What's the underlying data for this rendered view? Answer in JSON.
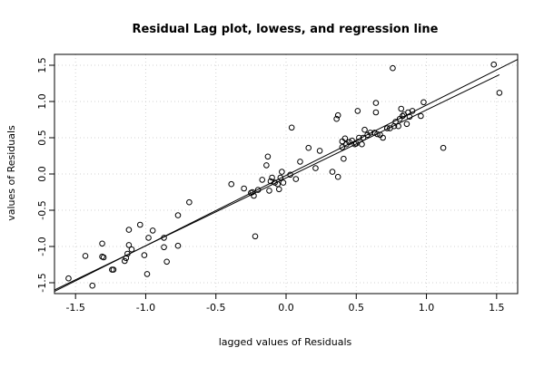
{
  "chart_data": {
    "type": "scatter",
    "title": "Residual Lag plot, lowess, and regression line",
    "xlabel": "lagged values of Residuals",
    "ylabel": "values of Residuals",
    "xlim": [
      -1.65,
      1.65
    ],
    "ylim": [
      -1.65,
      1.65
    ],
    "x_ticks": [
      -1.5,
      -1.0,
      -0.5,
      0.0,
      0.5,
      1.0,
      1.5
    ],
    "x_tick_labels": [
      "-1.5",
      "-1.0",
      "-0.5",
      "0.0",
      "0.5",
      "1.0",
      "1.5"
    ],
    "y_ticks": [
      -1.5,
      -1.0,
      -0.5,
      0.0,
      0.5,
      1.0,
      1.5
    ],
    "y_tick_labels": [
      "-1.5",
      "-1.0",
      "-0.5",
      "0.0",
      "0.5",
      "1.0",
      "1.5"
    ],
    "grid": true,
    "point_style": "open-circle",
    "series": [
      {
        "values": [
          [
            -1.55,
            -1.44
          ],
          [
            -1.43,
            -1.13
          ],
          [
            -1.38,
            -1.54
          ],
          [
            -1.31,
            -0.96
          ],
          [
            -1.31,
            -1.14
          ],
          [
            -1.3,
            -1.15
          ],
          [
            -1.24,
            -1.32
          ],
          [
            -1.23,
            -1.32
          ],
          [
            -1.15,
            -1.2
          ],
          [
            -1.14,
            -1.16
          ],
          [
            -1.13,
            -1.1
          ],
          [
            -1.12,
            -0.98
          ],
          [
            -1.12,
            -0.77
          ],
          [
            -1.1,
            -1.04
          ],
          [
            -1.04,
            -0.7
          ],
          [
            -1.01,
            -1.12
          ],
          [
            -0.99,
            -1.38
          ],
          [
            -0.98,
            -0.88
          ],
          [
            -0.95,
            -0.78
          ],
          [
            -0.87,
            -0.88
          ],
          [
            -0.87,
            -1.01
          ],
          [
            -0.85,
            -1.21
          ],
          [
            -0.77,
            -0.99
          ],
          [
            -0.77,
            -0.57
          ],
          [
            -0.69,
            -0.39
          ],
          [
            -0.39,
            -0.14
          ],
          [
            -0.3,
            -0.2
          ],
          [
            -0.25,
            -0.26
          ],
          [
            -0.24,
            -0.25
          ],
          [
            -0.23,
            -0.3
          ],
          [
            -0.22,
            -0.86
          ],
          [
            -0.2,
            -0.22
          ],
          [
            -0.17,
            -0.08
          ],
          [
            -0.14,
            0.12
          ],
          [
            -0.13,
            0.24
          ],
          [
            -0.12,
            -0.23
          ],
          [
            -0.11,
            -0.1
          ],
          [
            -0.1,
            -0.05
          ],
          [
            -0.08,
            -0.12
          ],
          [
            -0.06,
            -0.14
          ],
          [
            -0.05,
            -0.21
          ],
          [
            -0.04,
            -0.05
          ],
          [
            -0.03,
            0.03
          ],
          [
            -0.02,
            -0.12
          ],
          [
            0.03,
            -0.01
          ],
          [
            0.04,
            0.64
          ],
          [
            0.07,
            -0.07
          ],
          [
            0.1,
            0.17
          ],
          [
            0.16,
            0.36
          ],
          [
            0.21,
            0.08
          ],
          [
            0.24,
            0.32
          ],
          [
            0.33,
            0.03
          ],
          [
            0.36,
            0.76
          ],
          [
            0.37,
            0.81
          ],
          [
            0.37,
            -0.04
          ],
          [
            0.4,
            0.37
          ],
          [
            0.4,
            0.45
          ],
          [
            0.41,
            0.21
          ],
          [
            0.42,
            0.49
          ],
          [
            0.43,
            0.41
          ],
          [
            0.45,
            0.44
          ],
          [
            0.47,
            0.46
          ],
          [
            0.49,
            0.41
          ],
          [
            0.5,
            0.42
          ],
          [
            0.51,
            0.87
          ],
          [
            0.52,
            0.5
          ],
          [
            0.54,
            0.41
          ],
          [
            0.55,
            0.5
          ],
          [
            0.56,
            0.61
          ],
          [
            0.58,
            0.54
          ],
          [
            0.6,
            0.57
          ],
          [
            0.63,
            0.57
          ],
          [
            0.64,
            0.85
          ],
          [
            0.64,
            0.98
          ],
          [
            0.65,
            0.55
          ],
          [
            0.67,
            0.54
          ],
          [
            0.69,
            0.5
          ],
          [
            0.72,
            0.63
          ],
          [
            0.74,
            0.63
          ],
          [
            0.76,
            1.46
          ],
          [
            0.77,
            0.66
          ],
          [
            0.78,
            0.72
          ],
          [
            0.8,
            0.66
          ],
          [
            0.81,
            0.76
          ],
          [
            0.82,
            0.9
          ],
          [
            0.83,
            0.8
          ],
          [
            0.84,
            0.82
          ],
          [
            0.86,
            0.69
          ],
          [
            0.87,
            0.85
          ],
          [
            0.88,
            0.79
          ],
          [
            0.9,
            0.87
          ],
          [
            0.96,
            0.8
          ],
          [
            0.98,
            0.99
          ],
          [
            1.12,
            0.36
          ],
          [
            1.48,
            1.51
          ],
          [
            1.52,
            1.12
          ]
        ]
      }
    ],
    "lowess_line": [
      [
        -1.65,
        -1.6
      ],
      [
        1.52,
        1.37
      ]
    ],
    "regression_line": [
      [
        -1.65,
        -1.62
      ],
      [
        1.65,
        1.58
      ]
    ]
  }
}
